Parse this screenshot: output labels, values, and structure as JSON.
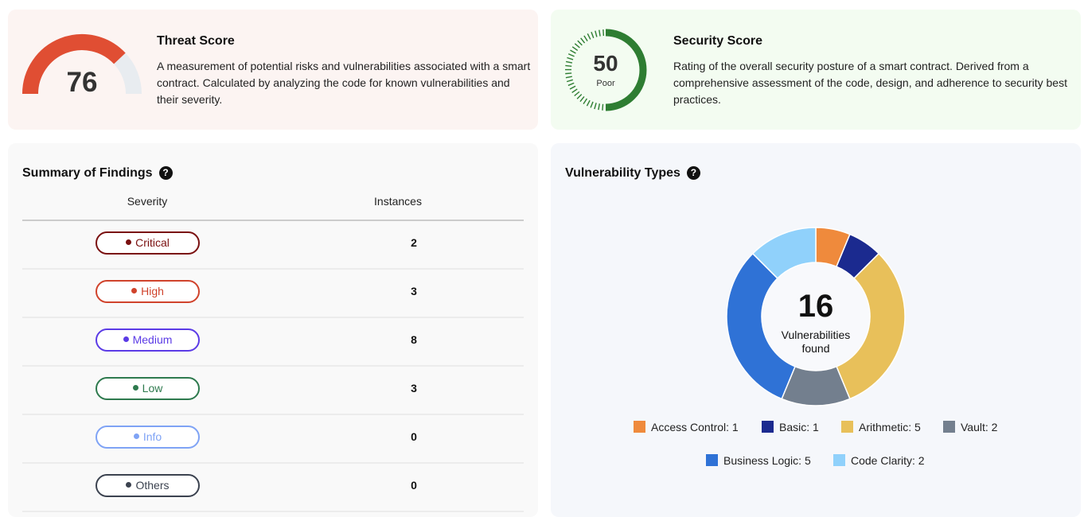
{
  "threat": {
    "title": "Threat Score",
    "score": "76",
    "value": 76,
    "max": 100,
    "description": "A measurement of potential risks and vulnerabilities associated with a smart contract. Calculated by analyzing the code for known vulnerabilities and their severity.",
    "color": "#e04e33",
    "track_color": "#e8ecf0"
  },
  "security": {
    "title": "Security Score",
    "score": "50",
    "value": 50,
    "max": 100,
    "rating": "Poor",
    "description": "Rating of the overall security posture of a smart contract. Derived from a comprehensive assessment of the code, design, and adherence to security best practices.",
    "color": "#2e7d32"
  },
  "summary": {
    "title": "Summary of Findings",
    "help_icon": "question-circle-icon",
    "help": "?",
    "columns": [
      "Severity",
      "Instances"
    ],
    "rows": [
      {
        "severity": "Critical",
        "instances": "2",
        "color": "#7a1010"
      },
      {
        "severity": "High",
        "instances": "3",
        "color": "#d0432c"
      },
      {
        "severity": "Medium",
        "instances": "8",
        "color": "#5b3be6"
      },
      {
        "severity": "Low",
        "instances": "3",
        "color": "#2e7a4e"
      },
      {
        "severity": "Info",
        "instances": "0",
        "color": "#7fa3f5"
      },
      {
        "severity": "Others",
        "instances": "0",
        "color": "#3c4350"
      }
    ]
  },
  "vuln": {
    "title": "Vulnerability Types",
    "help": "?",
    "total": "16",
    "center_label_1": "Vulnerabilities",
    "center_label_2": "found"
  },
  "chart_data": {
    "type": "pie",
    "variant": "donut",
    "categories": [
      "Access Control",
      "Basic",
      "Arithmetic",
      "Vault",
      "Business Logic",
      "Code Clarity"
    ],
    "values": [
      1,
      1,
      5,
      2,
      5,
      2
    ],
    "colors": [
      "#ef8a3c",
      "#1b2a8f",
      "#e8c05a",
      "#737f8e",
      "#2f72d6",
      "#90d1fb"
    ],
    "legend": [
      "Access Control: 1",
      "Basic: 1",
      "Arithmetic: 5",
      "Vault: 2",
      "Business Logic: 5",
      "Code Clarity: 2"
    ],
    "legend_position": "bottom"
  }
}
